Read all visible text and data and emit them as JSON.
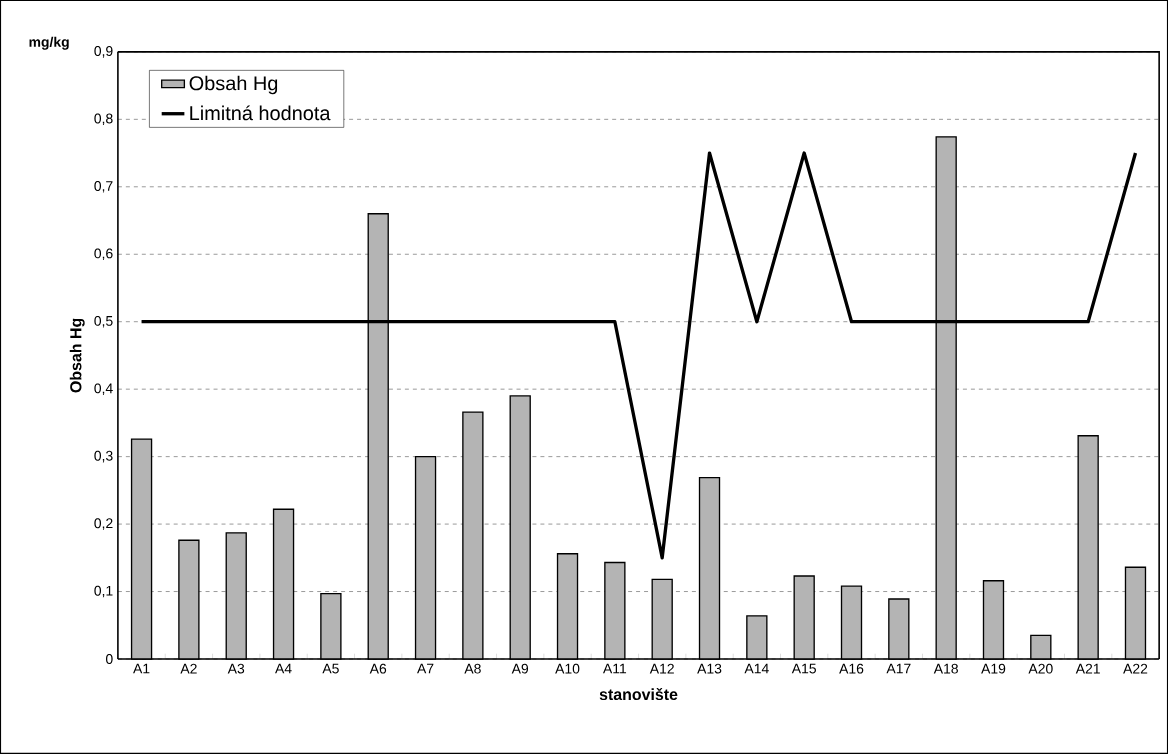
{
  "chart_data": {
    "type": "bar",
    "xlabel": "stanovište",
    "ylabel": "Obsah Hg",
    "annotations": [
      "mg/kg"
    ],
    "categories": [
      "A1",
      "A2",
      "A3",
      "A4",
      "A5",
      "A6",
      "A7",
      "A8",
      "A9",
      "A10",
      "A11",
      "A12",
      "A13",
      "A14",
      "A15",
      "A16",
      "A17",
      "A18",
      "A19",
      "A20",
      "A21",
      "A22"
    ],
    "series": [
      {
        "name": "Obsah Hg",
        "color": "#b4b4b4",
        "values": [
          0.326,
          0.176,
          0.187,
          0.222,
          0.097,
          0.66,
          0.3,
          0.366,
          0.39,
          0.156,
          0.143,
          0.118,
          0.269,
          0.064,
          0.123,
          0.108,
          0.089,
          0.774,
          0.116,
          0.035,
          0.331,
          0.136
        ]
      },
      {
        "name": "Limitná hodnota",
        "type": "line",
        "color": "#000000",
        "values": [
          0.5,
          0.5,
          0.5,
          0.5,
          0.5,
          0.5,
          0.5,
          0.5,
          0.5,
          0.5,
          0.5,
          0.15,
          0.75,
          0.5,
          0.75,
          0.5,
          0.5,
          0.5,
          0.5,
          0.5,
          0.5,
          0.75
        ]
      }
    ],
    "ylim": [
      0,
      0.9
    ],
    "yticks": [
      {
        "value": 0,
        "label": "0"
      },
      {
        "value": 0.1,
        "label": "0,1"
      },
      {
        "value": 0.2,
        "label": "0,2"
      },
      {
        "value": 0.3,
        "label": "0,3"
      },
      {
        "value": 0.4,
        "label": "0,4"
      },
      {
        "value": 0.5,
        "label": "0,5"
      },
      {
        "value": 0.6,
        "label": "0,6"
      },
      {
        "value": 0.7,
        "label": "0,7"
      },
      {
        "value": 0.8,
        "label": "0,8"
      },
      {
        "value": 0.9,
        "label": "0,9"
      }
    ],
    "grid": "y",
    "legend": "top left"
  }
}
